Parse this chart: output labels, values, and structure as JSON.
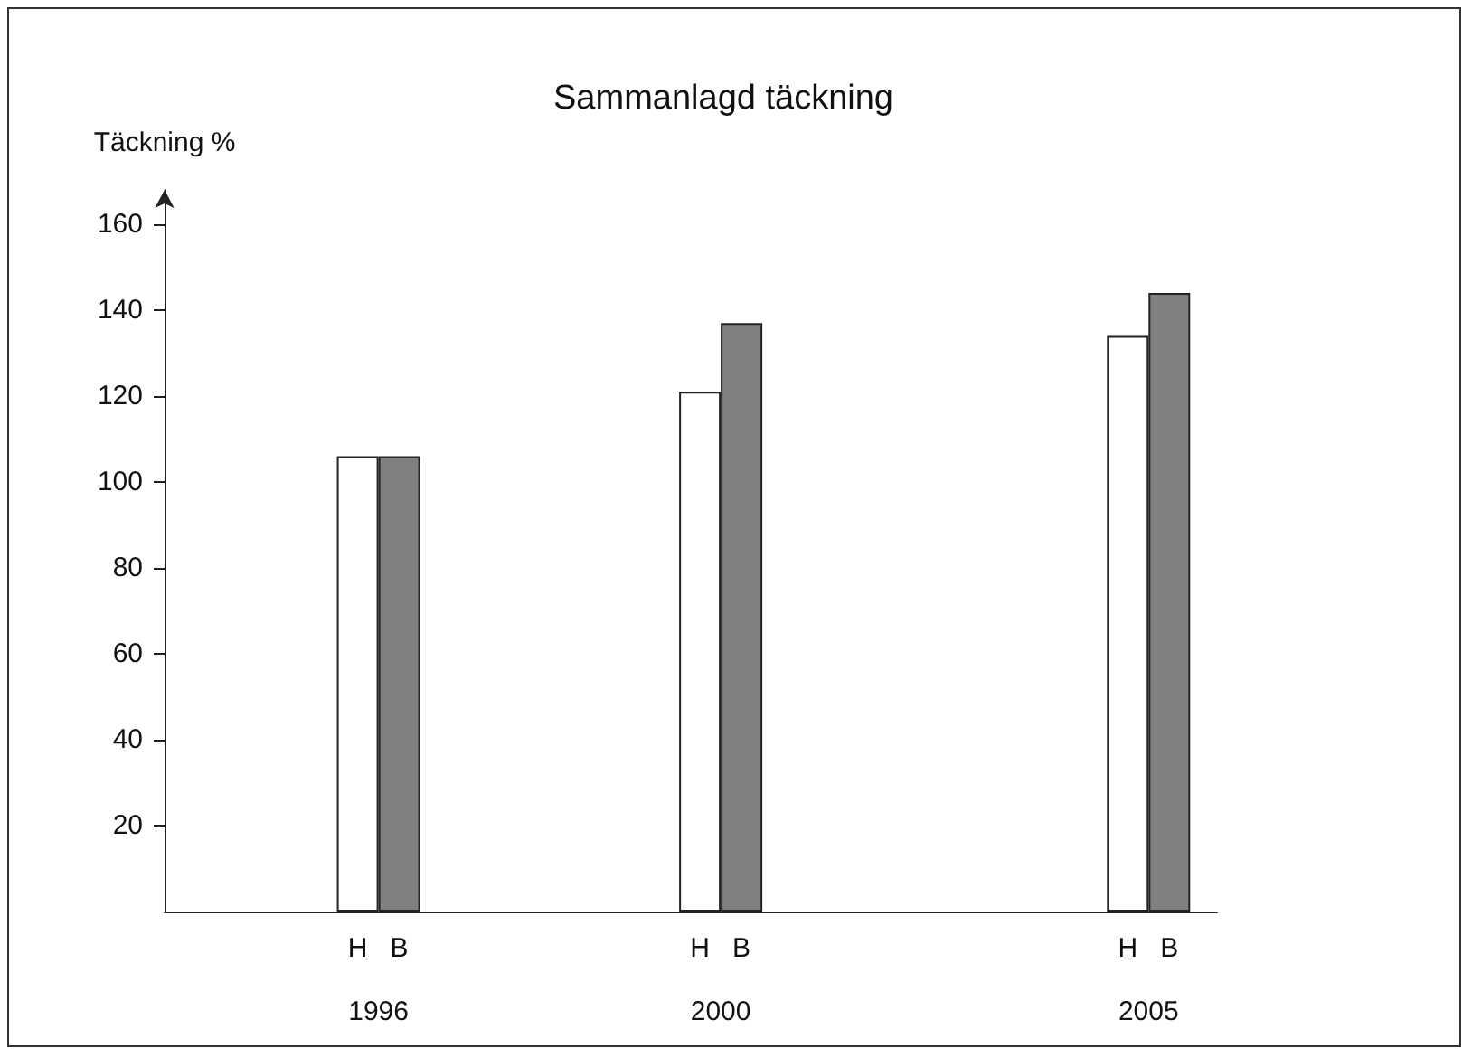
{
  "chart_data": {
    "type": "bar",
    "title": "Sammanlagd täckning",
    "ylabel": "Täckning %",
    "x": [
      1996,
      2000,
      2005
    ],
    "xlim": [
      1993.5,
      2005.8
    ],
    "xticks": [
      1996,
      2000,
      2005
    ],
    "ylim": [
      0,
      168
    ],
    "yticks": [
      20,
      40,
      60,
      80,
      100,
      120,
      140,
      160
    ],
    "series": [
      {
        "name": "H",
        "color": "#ffffff",
        "values": [
          106,
          121,
          134
        ]
      },
      {
        "name": "B",
        "color": "#808083",
        "values": [
          106,
          137,
          144
        ]
      }
    ]
  }
}
